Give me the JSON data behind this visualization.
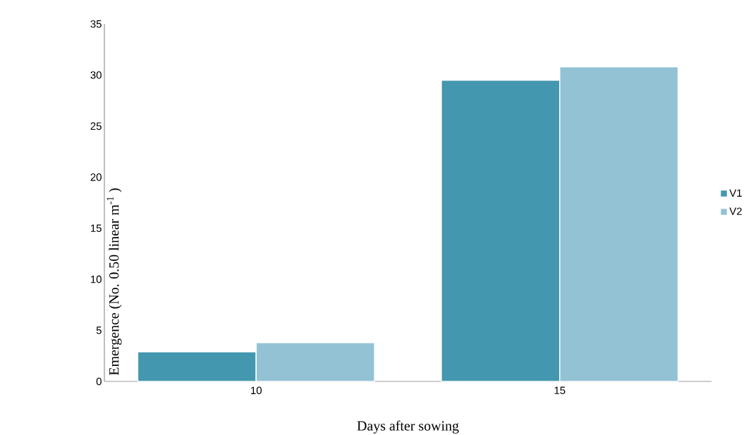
{
  "chart_data": {
    "type": "bar",
    "xlabel": "Days after sowing",
    "ylabel": "Emergence (No. 0.50 linear m$^{-1}$ )",
    "categories": [
      "10",
      "15"
    ],
    "series": [
      {
        "name": "V1",
        "color": "#4397af",
        "values": [
          2.9,
          29.5
        ]
      },
      {
        "name": "V2",
        "color": "#93c2d4",
        "values": [
          3.8,
          30.8
        ]
      }
    ],
    "ylim": [
      0,
      35
    ],
    "yticks": [
      0,
      5,
      10,
      15,
      20,
      25,
      30,
      35
    ],
    "grid": false,
    "legend": "right"
  }
}
